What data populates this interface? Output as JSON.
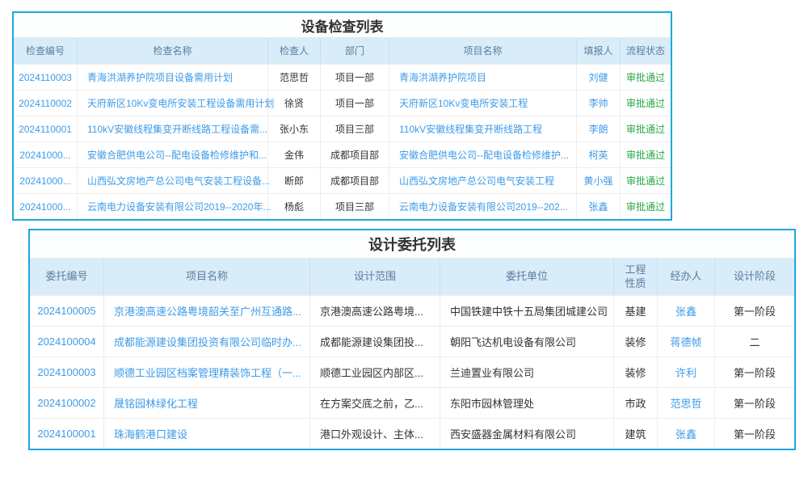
{
  "colors": {
    "panel_border": "#1ea6e0",
    "header_bg": "#d9ecf9",
    "header_text": "#5b7d9d",
    "link_blue": "#3d9be8",
    "status_green": "#28a745",
    "body_text": "#333333"
  },
  "table1": {
    "title": "设备检查列表",
    "columns": [
      "检查编号",
      "检查名称",
      "检查人",
      "部门",
      "项目名称",
      "填报人",
      "流程状态"
    ],
    "rows": [
      {
        "no": "2024110003",
        "name": "青海洪湖养护院项目设备需用计划",
        "inspector": "范思哲",
        "dept": "项目一部",
        "project": "青海洪湖养护院项目",
        "reporter": "刘健",
        "status": "审批通过"
      },
      {
        "no": "2024110002",
        "name": "天府新区10Kv变电所安装工程设备需用计划",
        "inspector": "徐贤",
        "dept": "项目一部",
        "project": "天府新区10Kv变电所安装工程",
        "reporter": "李帅",
        "status": "审批通过"
      },
      {
        "no": "2024110001",
        "name": "110kV安徽线程集变开断线路工程设备需...",
        "inspector": "张小东",
        "dept": "项目三部",
        "project": "110kV安徽线程集变开断线路工程",
        "reporter": "李朗",
        "status": "审批通过"
      },
      {
        "no": "20241000...",
        "name": "安徽合肥供电公司--配电设备检修维护和...",
        "inspector": "金伟",
        "dept": "成都项目部",
        "project": "安徽合肥供电公司--配电设备检修维护...",
        "reporter": "柯英",
        "status": "审批通过"
      },
      {
        "no": "20241000...",
        "name": "山西弘文房地产总公司电气安装工程设备...",
        "inspector": "断郎",
        "dept": "成都项目部",
        "project": "山西弘文房地产总公司电气安装工程",
        "reporter": "黄小强",
        "status": "审批通过"
      },
      {
        "no": "20241000...",
        "name": "云南电力设备安装有限公司2019--2020年...",
        "inspector": "杨彪",
        "dept": "项目三部",
        "project": "云南电力设备安装有限公司2019--202...",
        "reporter": "张鑫",
        "status": "审批通过"
      }
    ]
  },
  "table2": {
    "title": "设计委托列表",
    "columns": [
      "委托编号",
      "项目名称",
      "设计范围",
      "委托单位",
      "工程性质",
      "经办人",
      "设计阶段"
    ],
    "rows": [
      {
        "no": "2024100005",
        "project": "京港澳高速公路粤境韶关至广州互通路...",
        "scope": "京港澳高速公路粤境...",
        "client": "中国铁建中铁十五局集团城建公司",
        "type": "基建",
        "handler": "张鑫",
        "stage": "第一阶段"
      },
      {
        "no": "2024100004",
        "project": "成都能源建设集团投资有限公司临时办...",
        "scope": "成都能源建设集团投...",
        "client": "朝阳飞达机电设备有限公司",
        "type": "装修",
        "handler": "蒋德帧",
        "stage": "二"
      },
      {
        "no": "2024100003",
        "project": "顺德工业园区档案管理精装饰工程（一...",
        "scope": "顺德工业园区内部区...",
        "client": "兰迪置业有限公司",
        "type": "装修",
        "handler": "许利",
        "stage": "第一阶段"
      },
      {
        "no": "2024100002",
        "project": "晟铭园林绿化工程",
        "scope": "在方案交底之前，乙...",
        "client": "东阳市园林管理处",
        "type": "市政",
        "handler": "范思哲",
        "stage": "第一阶段"
      },
      {
        "no": "2024100001",
        "project": "珠海鹤港口建设",
        "scope": "港口外观设计、主体...",
        "client": "西安盛器金属材料有限公司",
        "type": "建筑",
        "handler": "张鑫",
        "stage": "第一阶段"
      }
    ]
  }
}
